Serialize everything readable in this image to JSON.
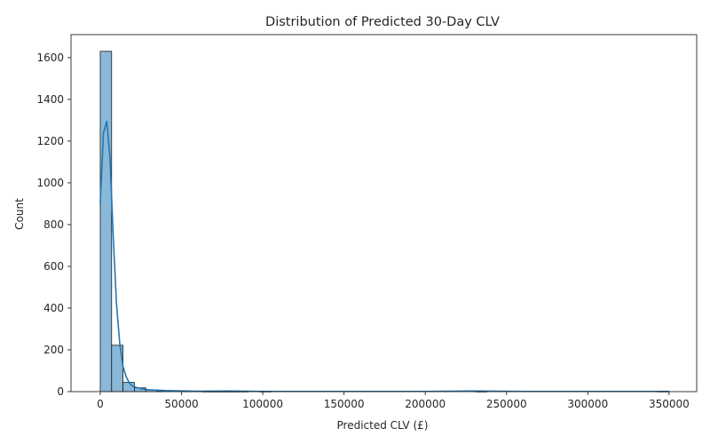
{
  "chart_data": {
    "type": "histogram",
    "title": "Distribution of Predicted 30-Day CLV",
    "xlabel": "Predicted CLV (£)",
    "ylabel": "Count",
    "xlim": [
      -18000,
      367000
    ],
    "ylim": [
      0,
      1710
    ],
    "x_ticks": [
      0,
      50000,
      100000,
      150000,
      200000,
      250000,
      300000,
      350000
    ],
    "y_ticks": [
      0,
      200,
      400,
      600,
      800,
      1000,
      1200,
      1400,
      1600
    ],
    "grid": false,
    "legend": "none",
    "bin_start": 0,
    "bin_width": 7000,
    "counts": [
      1630,
      222,
      44,
      18,
      8,
      4,
      3,
      2,
      2,
      1,
      1,
      1,
      1,
      0,
      1,
      0,
      0,
      0,
      0,
      0,
      0,
      0,
      0,
      0,
      0,
      0,
      0,
      0,
      0,
      0,
      0,
      0,
      0,
      1,
      0,
      0,
      0,
      0,
      0,
      0,
      0,
      0,
      0,
      0,
      0,
      0,
      0,
      0,
      0,
      1
    ],
    "kde": {
      "x": [
        0,
        2000,
        4000,
        6000,
        8000,
        10000,
        12000,
        14000,
        16000,
        18000,
        20000,
        25000,
        30000,
        40000,
        60000,
        80000,
        100000,
        150000,
        200000,
        230000,
        260000,
        300000,
        350000
      ],
      "y": [
        905,
        1240,
        1295,
        1120,
        740,
        420,
        230,
        120,
        70,
        40,
        25,
        14,
        9,
        5,
        2,
        3,
        1,
        1,
        1,
        3,
        1,
        1,
        1
      ]
    },
    "colors": {
      "bar_fill": "#8ab8d8",
      "bar_edge": "#1a1a1a",
      "kde_line": "#1f77b4",
      "text": "#262626"
    }
  }
}
